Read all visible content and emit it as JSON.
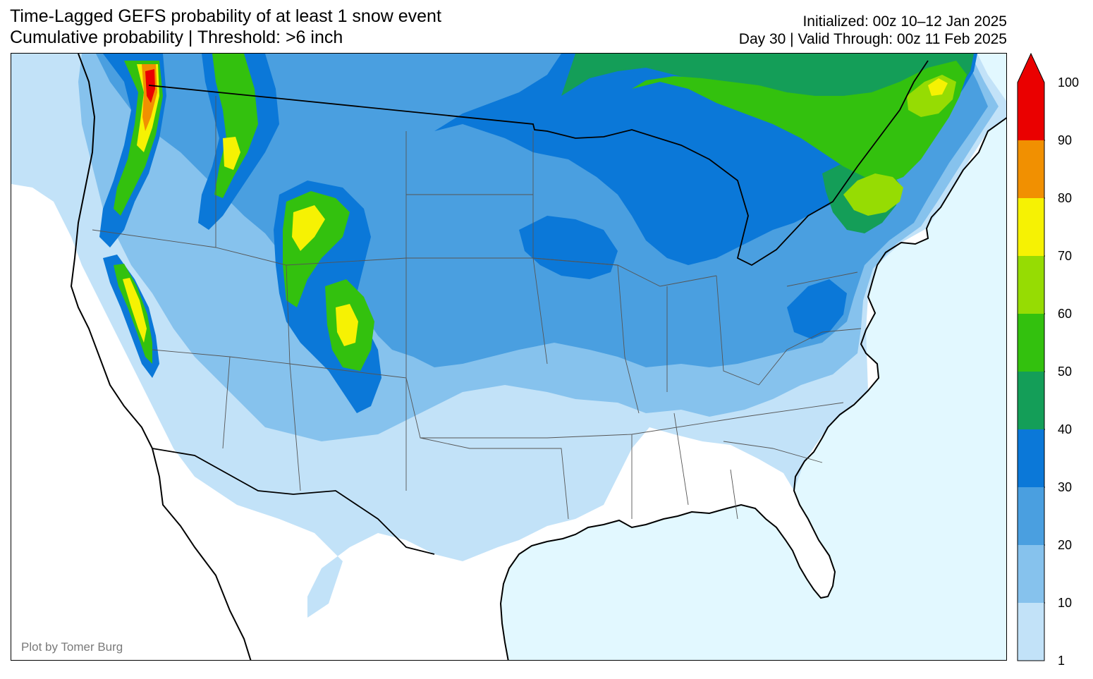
{
  "title": {
    "line1": "Time-Lagged GEFS probability of at least 1 snow event",
    "line2": "Cumulative probability | Threshold: >6 inch"
  },
  "info": {
    "line1": "Initialized: 00z 10–12 Jan 2025",
    "line2": "Day 30 | Valid Through: 00z 11 Feb 2025"
  },
  "credit": "Plot by Tomer Burg",
  "colorbar": {
    "levels": [
      "1",
      "10",
      "20",
      "30",
      "40",
      "50",
      "60",
      "70",
      "80",
      "90",
      "100"
    ],
    "colors": [
      "#c2e2f8",
      "#86c2ed",
      "#4a9fe0",
      "#0b78d8",
      "#149e58",
      "#33c10e",
      "#96dc03",
      "#f6f203",
      "#f19001",
      "#ea0000"
    ],
    "extend": "max"
  },
  "map": {
    "ocean_color": "#e2f8ff",
    "land_color": "#ffffff"
  }
}
